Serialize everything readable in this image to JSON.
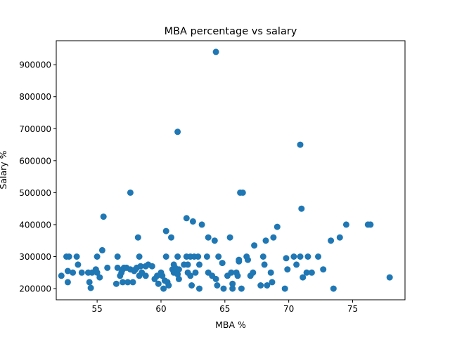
{
  "chart_data": {
    "type": "scatter",
    "title": "MBA percentage vs salary",
    "xlabel": "MBA %",
    "ylabel": "Salary %",
    "xlim": [
      51.8,
      79.1
    ],
    "ylim": [
      165000,
      975000
    ],
    "xticks": [
      55,
      60,
      65,
      70,
      75
    ],
    "yticks": [
      200000,
      300000,
      400000,
      500000,
      600000,
      700000,
      800000,
      900000
    ],
    "grid": false,
    "legend": "none",
    "marker_color": "#1f77b4",
    "points": [
      [
        52.2,
        240000
      ],
      [
        52.6,
        300000
      ],
      [
        52.7,
        220000
      ],
      [
        52.7,
        255000
      ],
      [
        52.8,
        300000
      ],
      [
        53.1,
        250000
      ],
      [
        53.4,
        300000
      ],
      [
        53.5,
        275000
      ],
      [
        53.8,
        250000
      ],
      [
        54.3,
        250000
      ],
      [
        54.4,
        220000
      ],
      [
        54.5,
        202000
      ],
      [
        54.6,
        250000
      ],
      [
        54.9,
        260000
      ],
      [
        55.0,
        300000
      ],
      [
        55.0,
        250000
      ],
      [
        55.2,
        235000
      ],
      [
        55.4,
        320000
      ],
      [
        55.5,
        425000
      ],
      [
        55.8,
        265000
      ],
      [
        56.5,
        215000
      ],
      [
        56.6,
        300000
      ],
      [
        56.6,
        265000
      ],
      [
        56.8,
        240000
      ],
      [
        56.9,
        250000
      ],
      [
        57.0,
        260000
      ],
      [
        57.0,
        220000
      ],
      [
        57.1,
        265000
      ],
      [
        57.3,
        265000
      ],
      [
        57.4,
        220000
      ],
      [
        57.6,
        260000
      ],
      [
        57.6,
        500000
      ],
      [
        57.8,
        220000
      ],
      [
        57.9,
        255000
      ],
      [
        58.0,
        260000
      ],
      [
        58.1,
        265000
      ],
      [
        58.2,
        360000
      ],
      [
        58.3,
        300000
      ],
      [
        58.3,
        240000
      ],
      [
        58.4,
        270000
      ],
      [
        58.5,
        250000
      ],
      [
        58.8,
        240000
      ],
      [
        58.8,
        270000
      ],
      [
        59.0,
        275000
      ],
      [
        59.3,
        270000
      ],
      [
        59.5,
        230000
      ],
      [
        59.7,
        240000
      ],
      [
        59.8,
        215000
      ],
      [
        60.0,
        250000
      ],
      [
        60.1,
        240000
      ],
      [
        60.2,
        200000
      ],
      [
        60.3,
        225000
      ],
      [
        60.4,
        300000
      ],
      [
        60.4,
        380000
      ],
      [
        60.5,
        220000
      ],
      [
        60.6,
        210000
      ],
      [
        60.8,
        360000
      ],
      [
        60.9,
        260000
      ],
      [
        61.0,
        250000
      ],
      [
        61.0,
        275000
      ],
      [
        61.1,
        265000
      ],
      [
        61.2,
        260000
      ],
      [
        61.3,
        690000
      ],
      [
        61.3,
        300000
      ],
      [
        61.3,
        245000
      ],
      [
        61.4,
        260000
      ],
      [
        61.4,
        230000
      ],
      [
        61.8,
        275000
      ],
      [
        62.0,
        300000
      ],
      [
        62.0,
        420000
      ],
      [
        62.1,
        250000
      ],
      [
        62.1,
        275000
      ],
      [
        62.3,
        300000
      ],
      [
        62.3,
        240000
      ],
      [
        62.4,
        210000
      ],
      [
        62.5,
        410000
      ],
      [
        62.6,
        300000
      ],
      [
        62.7,
        250000
      ],
      [
        62.9,
        300000
      ],
      [
        63.0,
        200000
      ],
      [
        63.0,
        275000
      ],
      [
        63.2,
        400000
      ],
      [
        63.6,
        300000
      ],
      [
        63.7,
        360000
      ],
      [
        63.7,
        250000
      ],
      [
        64.0,
        240000
      ],
      [
        64.2,
        350000
      ],
      [
        64.3,
        940000
      ],
      [
        64.3,
        230000
      ],
      [
        64.4,
        210000
      ],
      [
        64.5,
        300000
      ],
      [
        64.8,
        280000
      ],
      [
        64.9,
        200000
      ],
      [
        65.2,
        240000
      ],
      [
        65.4,
        360000
      ],
      [
        65.5,
        250000
      ],
      [
        65.6,
        200000
      ],
      [
        65.6,
        215000
      ],
      [
        65.9,
        250000
      ],
      [
        66.0,
        240000
      ],
      [
        66.1,
        285000
      ],
      [
        66.1,
        290000
      ],
      [
        66.2,
        500000
      ],
      [
        66.3,
        200000
      ],
      [
        66.4,
        500000
      ],
      [
        66.7,
        300000
      ],
      [
        66.8,
        290000
      ],
      [
        67.0,
        240000
      ],
      [
        67.2,
        250000
      ],
      [
        67.3,
        335000
      ],
      [
        67.8,
        210000
      ],
      [
        68.0,
        300000
      ],
      [
        68.1,
        275000
      ],
      [
        68.2,
        350000
      ],
      [
        68.3,
        210000
      ],
      [
        68.6,
        250000
      ],
      [
        68.7,
        220000
      ],
      [
        68.8,
        360000
      ],
      [
        69.1,
        393000
      ],
      [
        69.7,
        200000
      ],
      [
        69.8,
        295000
      ],
      [
        69.9,
        260000
      ],
      [
        70.4,
        300000
      ],
      [
        70.6,
        275000
      ],
      [
        70.9,
        650000
      ],
      [
        70.9,
        300000
      ],
      [
        71.0,
        450000
      ],
      [
        71.1,
        235000
      ],
      [
        71.4,
        250000
      ],
      [
        71.5,
        300000
      ],
      [
        71.8,
        250000
      ],
      [
        72.3,
        300000
      ],
      [
        72.7,
        260000
      ],
      [
        73.3,
        350000
      ],
      [
        73.5,
        200000
      ],
      [
        74.0,
        360000
      ],
      [
        74.5,
        400000
      ],
      [
        76.2,
        400000
      ],
      [
        76.4,
        400000
      ],
      [
        77.9,
        235000
      ]
    ]
  }
}
